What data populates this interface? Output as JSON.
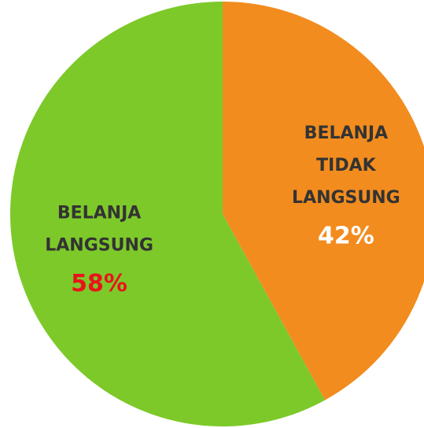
{
  "chart_data": {
    "type": "pie",
    "categories": [
      "BELANJA TIDAK LANGSUNG",
      "BELANJA LANGSUNG"
    ],
    "values": [
      42,
      58
    ],
    "value_labels": [
      "42%",
      "58%"
    ],
    "colors": [
      "#f28c1e",
      "#7dc92a"
    ],
    "value_label_colors": [
      "#ffffff",
      "#e8141b"
    ]
  }
}
